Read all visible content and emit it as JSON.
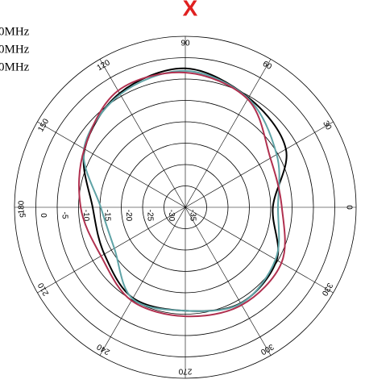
{
  "chart_data": {
    "type": "polar",
    "close_label": "X",
    "theta": [
      0,
      30,
      60,
      90,
      120,
      150,
      180,
      210,
      240,
      270,
      300,
      330
    ],
    "rlim": [
      -35,
      5
    ],
    "rticks": [
      5,
      0,
      -5,
      -10,
      -15,
      -20,
      -25,
      -30,
      -35
    ],
    "thetaticks": [
      0,
      30,
      60,
      90,
      120,
      150,
      180,
      210,
      240,
      270,
      300,
      330
    ],
    "series": [
      {
        "name": "0MHz",
        "color": "#000000",
        "values": [
          -14.5,
          -7.8,
          -5.4,
          -2.5,
          -4.2,
          -7.8,
          -13.3,
          -13.1,
          -10.5,
          -10.8,
          -9.1,
          -10.3
        ]
      },
      {
        "name": "0MHz",
        "color": "#5fa3a6",
        "values": [
          -13.3,
          -10.3,
          -5.6,
          -3.1,
          -4.5,
          -7.6,
          -15.2,
          -15.8,
          -10.3,
          -10.8,
          -9.0,
          -10.6
        ]
      },
      {
        "name": "0MHz",
        "color": "#b0304f",
        "values": [
          -12.4,
          -12.0,
          -5.8,
          -3.5,
          -3.5,
          -7.7,
          -10.5,
          -12.2,
          -9.8,
          -9.5,
          -8.6,
          -9.0
        ]
      }
    ]
  }
}
